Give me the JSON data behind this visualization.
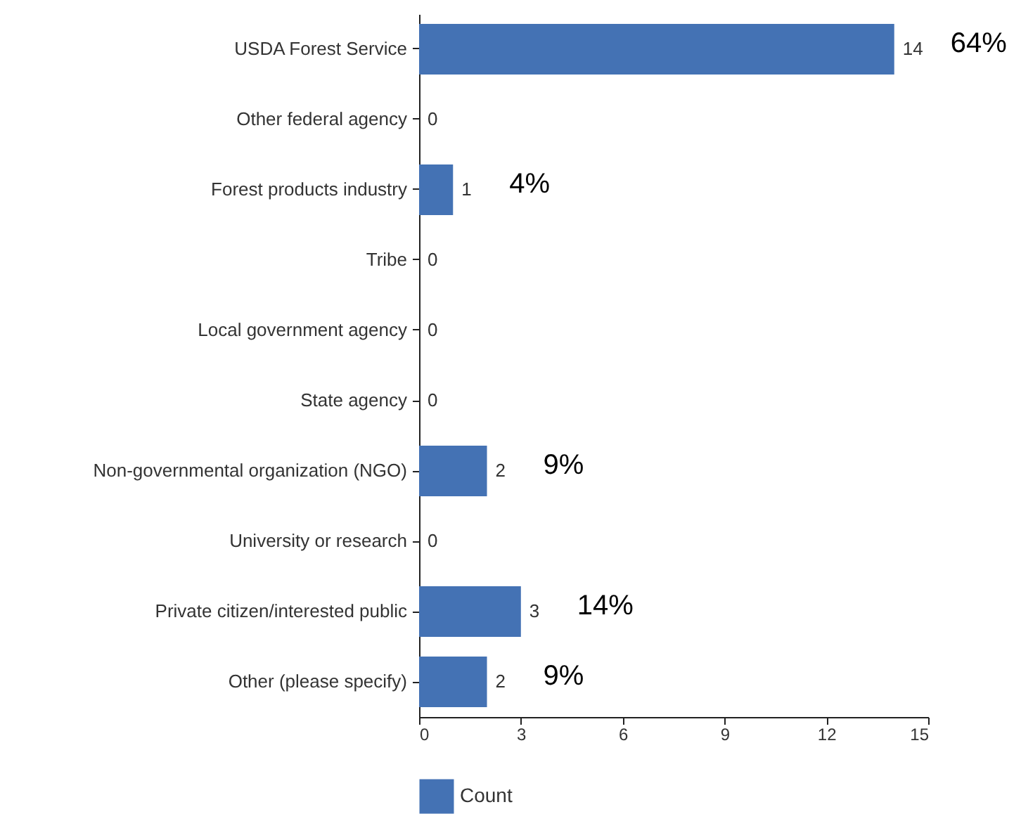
{
  "chart_data": {
    "type": "bar",
    "orientation": "horizontal",
    "categories": [
      "USDA Forest Service",
      "Other federal agency",
      "Forest products industry",
      "Tribe",
      "Local government agency",
      "State agency",
      "Non-governmental organization (NGO)",
      "University or research",
      "Private citizen/interested public",
      "Other (please specify)"
    ],
    "series": [
      {
        "name": "Count",
        "color": "#4472b4",
        "values": [
          14,
          0,
          1,
          0,
          0,
          0,
          2,
          0,
          3,
          2
        ]
      }
    ],
    "xlim": [
      0,
      15
    ],
    "xticks": [
      0,
      3,
      6,
      9,
      12,
      15
    ],
    "grid": false,
    "legend": "bottom",
    "data_labels": true,
    "annotations": [
      "64%",
      "4%",
      "9%",
      "14%",
      "9%"
    ]
  }
}
